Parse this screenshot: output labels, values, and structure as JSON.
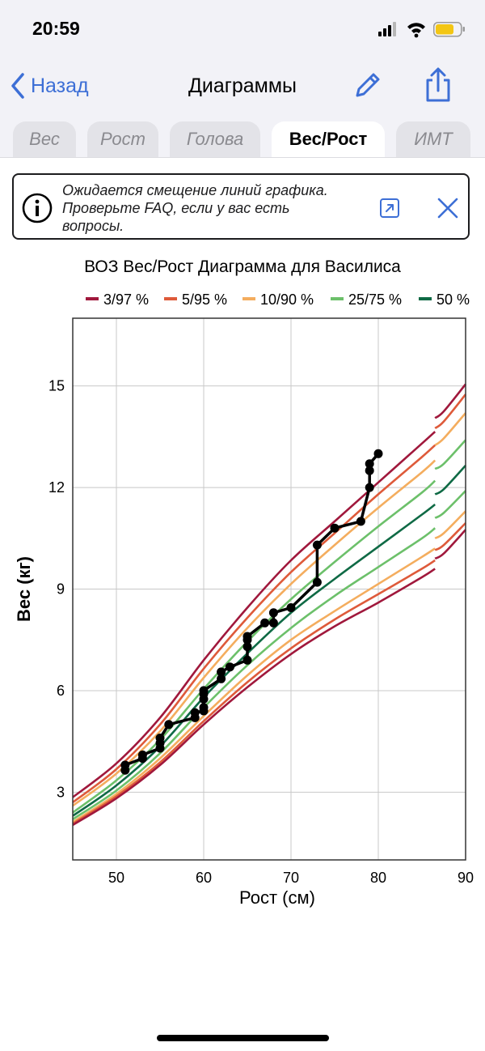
{
  "status": {
    "time": "20:59"
  },
  "nav": {
    "back_label": "Назад",
    "title": "Диаграммы"
  },
  "tabs": [
    {
      "label": "Вес"
    },
    {
      "label": "Рост"
    },
    {
      "label": "Голова"
    },
    {
      "label": "Вес/Рост",
      "active": true
    },
    {
      "label": "ИМТ"
    }
  ],
  "banner": {
    "line1": "Ожидается смещение линий графика.",
    "line2": "Проверьте FAQ, если у вас есть",
    "line3": "вопросы."
  },
  "colors": {
    "accent": "#3d6fd6",
    "p3_97": "#a0183c",
    "p5_95": "#de5a3a",
    "p10_90": "#f4ad5e",
    "p25_75": "#6cc06a",
    "p50": "#0f6a45",
    "child": "#000000"
  },
  "chart_data": {
    "type": "line",
    "title": "ВОЗ Вес/Рост Диаграмма для Василиса",
    "xlabel": "Рост (см)",
    "ylabel": "Вес (кг)",
    "xlim": [
      45,
      90
    ],
    "ylim": [
      1,
      17
    ],
    "x_ticks": [
      50,
      60,
      70,
      80,
      90
    ],
    "y_ticks": [
      3,
      6,
      9,
      12,
      15
    ],
    "grid": true,
    "legend_position": "top",
    "legend": [
      {
        "label": "3/97 %",
        "color": "#a0183c"
      },
      {
        "label": "5/95 %",
        "color": "#de5a3a"
      },
      {
        "label": "10/90 %",
        "color": "#f4ad5e"
      },
      {
        "label": "25/75 %",
        "color": "#6cc06a"
      },
      {
        "label": "50 %",
        "color": "#0f6a45"
      }
    ],
    "reference_x": [
      45,
      50,
      55,
      60,
      65,
      70,
      75,
      80,
      85,
      86.5
    ],
    "reference_x_right": [
      86.5,
      87.5,
      90
    ],
    "series": [
      {
        "group": "3/97 %",
        "color": "#a0183c",
        "values": [
          2.85,
          3.85,
          5.2,
          6.9,
          8.45,
          9.85,
          11.0,
          12.15,
          13.3,
          13.65
        ],
        "right": [
          14.05,
          14.25,
          15.05
        ]
      },
      {
        "group": "5/95 %",
        "color": "#de5a3a",
        "values": [
          2.7,
          3.68,
          5.0,
          6.65,
          8.15,
          9.5,
          10.65,
          11.8,
          12.9,
          13.25
        ],
        "right": [
          13.75,
          13.95,
          14.75
        ]
      },
      {
        "group": "10/90 %",
        "color": "#f4ad5e",
        "values": [
          2.6,
          3.55,
          4.8,
          6.38,
          7.85,
          9.15,
          10.3,
          11.4,
          12.45,
          12.8
        ],
        "right": [
          13.25,
          13.45,
          14.2
        ]
      },
      {
        "group": "25/75 %",
        "color": "#6cc06a",
        "values": [
          2.4,
          3.35,
          4.55,
          6.05,
          7.45,
          8.7,
          9.8,
          10.85,
          11.85,
          12.2
        ],
        "right": [
          12.55,
          12.7,
          13.4
        ]
      },
      {
        "group": "50 %",
        "color": "#0f6a45",
        "values": [
          2.3,
          3.2,
          4.35,
          5.8,
          7.1,
          8.3,
          9.3,
          10.25,
          11.2,
          11.5
        ],
        "right": [
          11.8,
          11.95,
          12.65
        ]
      },
      {
        "group": "25/75 %",
        "color": "#6cc06a",
        "values": [
          2.2,
          3.05,
          4.15,
          5.5,
          6.75,
          7.85,
          8.8,
          9.65,
          10.5,
          10.8
        ],
        "right": [
          11.1,
          11.25,
          11.9
        ]
      },
      {
        "group": "10/90 %",
        "color": "#f4ad5e",
        "values": [
          2.12,
          2.95,
          4.0,
          5.25,
          6.45,
          7.5,
          8.35,
          9.15,
          9.95,
          10.2
        ],
        "right": [
          10.5,
          10.65,
          11.3
        ]
      },
      {
        "group": "5/95 %",
        "color": "#de5a3a",
        "values": [
          2.07,
          2.88,
          3.88,
          5.1,
          6.25,
          7.25,
          8.1,
          8.85,
          9.6,
          9.85
        ],
        "right": [
          10.15,
          10.3,
          10.95
        ]
      },
      {
        "group": "3/97 %",
        "color": "#a0183c",
        "values": [
          2.03,
          2.82,
          3.8,
          5.0,
          6.1,
          7.08,
          7.9,
          8.6,
          9.35,
          9.6
        ],
        "right": [
          9.9,
          10.05,
          10.75
        ]
      }
    ],
    "child_points": [
      [
        51,
        3.65
      ],
      [
        51,
        3.8
      ],
      [
        53,
        4.0
      ],
      [
        53,
        4.1
      ],
      [
        55,
        4.3
      ],
      [
        55,
        4.45
      ],
      [
        55,
        4.6
      ],
      [
        56,
        5.0
      ],
      [
        59,
        5.2
      ],
      [
        59,
        5.35
      ],
      [
        60,
        5.4
      ],
      [
        60,
        5.5
      ],
      [
        60,
        5.75
      ],
      [
        60,
        5.9
      ],
      [
        60,
        6.0
      ],
      [
        62,
        6.35
      ],
      [
        62,
        6.55
      ],
      [
        63,
        6.7
      ],
      [
        65,
        6.9
      ],
      [
        65,
        7.3
      ],
      [
        65,
        7.5
      ],
      [
        65,
        7.6
      ],
      [
        67,
        8.0
      ],
      [
        68,
        8.0
      ],
      [
        68,
        8.3
      ],
      [
        70,
        8.45
      ],
      [
        73,
        9.2
      ],
      [
        73,
        10.3
      ],
      [
        75,
        10.8
      ],
      [
        78,
        11.0
      ],
      [
        79,
        12.0
      ],
      [
        79,
        12.5
      ],
      [
        79,
        12.7
      ],
      [
        80,
        13.0
      ]
    ]
  }
}
